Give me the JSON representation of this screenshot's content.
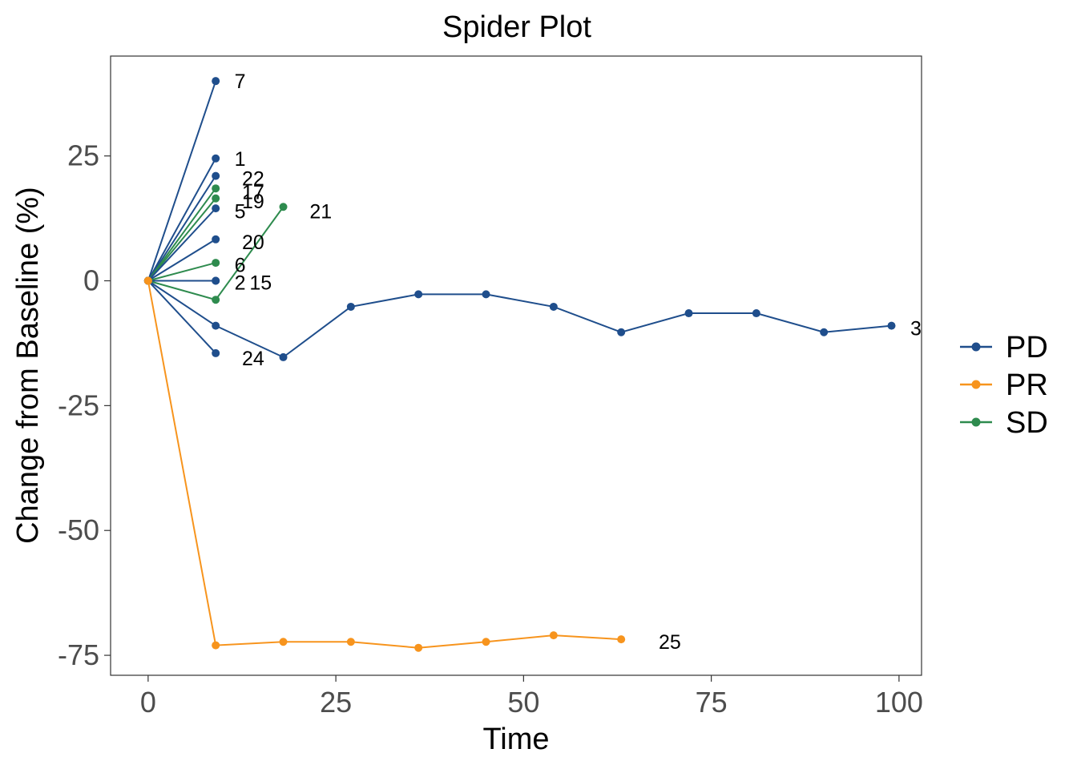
{
  "chart_data": {
    "type": "line",
    "title": "Spider Plot",
    "xlabel": "Time",
    "ylabel": "Change from Baseline (%)",
    "xlim": [
      -5,
      103
    ],
    "ylim": [
      -79,
      45
    ],
    "xticks": [
      0,
      25,
      50,
      75,
      100
    ],
    "yticks": [
      -75,
      -50,
      -25,
      0,
      25
    ],
    "grid": false,
    "legend_position": "right",
    "legend": [
      {
        "name": "PD",
        "color": "#1f4e8c"
      },
      {
        "name": "PR",
        "color": "#f7941d"
      },
      {
        "name": "SD",
        "color": "#2e8b4e"
      }
    ],
    "series": [
      {
        "group": "PD",
        "id": "7",
        "label": "7",
        "label_at": [
          11.5,
          40
        ],
        "x": [
          0,
          9
        ],
        "y": [
          0,
          40
        ]
      },
      {
        "group": "PD",
        "id": "1",
        "label": "1",
        "label_at": [
          11.5,
          24.5
        ],
        "x": [
          0,
          9
        ],
        "y": [
          0,
          24.5
        ]
      },
      {
        "group": "PD",
        "id": "22",
        "label": "22",
        "label_at": [
          12.5,
          20.5
        ],
        "x": [
          0,
          9
        ],
        "y": [
          0,
          21
        ]
      },
      {
        "group": "SD",
        "id": "17",
        "label": "17",
        "label_at": [
          12.5,
          17.8
        ],
        "x": [
          0,
          9
        ],
        "y": [
          0,
          18.5
        ]
      },
      {
        "group": "SD",
        "id": "19",
        "label": "19",
        "label_at": [
          12.5,
          16.0
        ],
        "x": [
          0,
          9
        ],
        "y": [
          0,
          16.5
        ]
      },
      {
        "group": "PD",
        "id": "5",
        "label": "5",
        "label_at": [
          11.5,
          14
        ],
        "x": [
          0,
          9
        ],
        "y": [
          0,
          14.5
        ]
      },
      {
        "group": "SD",
        "id": "21",
        "label": "21",
        "label_at": [
          21.5,
          14
        ],
        "x": [
          0,
          9,
          18
        ],
        "y": [
          0,
          -3.8,
          14.8
        ]
      },
      {
        "group": "PD",
        "id": "20",
        "label": "20",
        "label_at": [
          12.5,
          7.8
        ],
        "x": [
          0,
          9
        ],
        "y": [
          0,
          8.3
        ]
      },
      {
        "group": "SD",
        "id": "6",
        "label": "6",
        "label_at": [
          11.5,
          3.2
        ],
        "x": [
          0,
          9
        ],
        "y": [
          0,
          3.6
        ]
      },
      {
        "group": "PD",
        "id": "2",
        "label": "2",
        "label_at": [
          11.5,
          -0.3
        ],
        "x": [
          0,
          9
        ],
        "y": [
          0,
          0
        ]
      },
      {
        "group": "PD",
        "id": "15",
        "label": "15",
        "label_at": [
          13.5,
          -0.3
        ],
        "x": [
          0,
          9
        ],
        "y": [
          0,
          0
        ]
      },
      {
        "group": "PD",
        "id": "24",
        "label": "24",
        "label_at": [
          12.5,
          -15.5
        ],
        "x": [
          0,
          9
        ],
        "y": [
          0,
          -14.5
        ]
      },
      {
        "group": "PD",
        "id": "3",
        "label": "3",
        "label_at": [
          101.5,
          -9.5
        ],
        "x": [
          0,
          9,
          18,
          27,
          36,
          45,
          54,
          63,
          72,
          81,
          90,
          99
        ],
        "y": [
          0,
          -9,
          -15.3,
          -5.2,
          -2.7,
          -2.7,
          -5.2,
          -10.3,
          -6.5,
          -6.5,
          -10.3,
          -9
        ]
      },
      {
        "group": "PR",
        "id": "25",
        "label": "25",
        "label_at": [
          68,
          -72.3
        ],
        "x": [
          0,
          9,
          18,
          27,
          36,
          45,
          54,
          63
        ],
        "y": [
          0,
          -73,
          -72.3,
          -72.3,
          -73.5,
          -72.3,
          -71,
          -71.8
        ]
      }
    ]
  }
}
